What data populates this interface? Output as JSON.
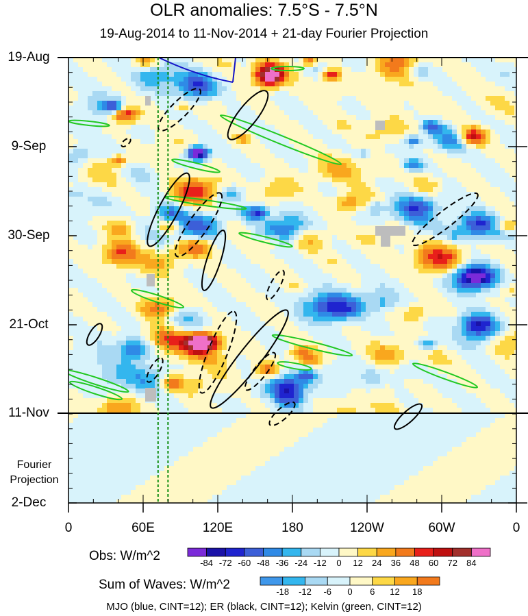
{
  "chart_data": {
    "type": "heatmap",
    "title": "OLR anomalies: 7.5°S - 7.5°N",
    "subtitle": "19-Aug-2014 to 11-Nov-2014 + 21-day Fourier Projection",
    "y_ticks": [
      "19-Aug",
      "9-Sep",
      "30-Sep",
      "21-Oct",
      "11-Nov",
      "2-Dec"
    ],
    "y_extra_label": "Fourier Projection",
    "x_ticks": [
      "0",
      "60E",
      "120E",
      "180",
      "120W",
      "60W",
      "0"
    ],
    "observation_end": "11-Nov",
    "obs_colorbar": {
      "label": "Obs: W/m^2",
      "levels": [
        -84,
        -72,
        -60,
        -48,
        -36,
        -24,
        -12,
        0,
        12,
        24,
        36,
        48,
        60,
        72,
        84
      ],
      "colors": [
        "#7b2ad9",
        "#1a12a8",
        "#1f24cf",
        "#3c5fd8",
        "#2f8ae6",
        "#33b6ee",
        "#a9d9f3",
        "#d8f3fb",
        "#fff8c6",
        "#fdd846",
        "#f9a71e",
        "#f27a1c",
        "#e8201a",
        "#bf1010",
        "#a2302c",
        "#ef70c8"
      ]
    },
    "waves_colorbar": {
      "label": "Sum of Waves: W/m^2",
      "levels": [
        -18,
        -12,
        -6,
        0,
        6,
        12,
        18
      ],
      "colors": [
        "#3f97ea",
        "#33b6ee",
        "#a9d9f3",
        "#d8f3fb",
        "#fff8c6",
        "#fdd846",
        "#f9a71e",
        "#f27a1c"
      ]
    },
    "contour_key": "MJO (blue, CINT=12); ER (black, CINT=12); Kelvin (green, CINT=12)",
    "series": [
      {
        "name": "MJO",
        "color": "#1414c8"
      },
      {
        "name": "ER",
        "color": "#000000"
      },
      {
        "name": "Kelvin",
        "color": "#22c822"
      }
    ],
    "reference_longitudes": [
      72,
      80
    ]
  }
}
